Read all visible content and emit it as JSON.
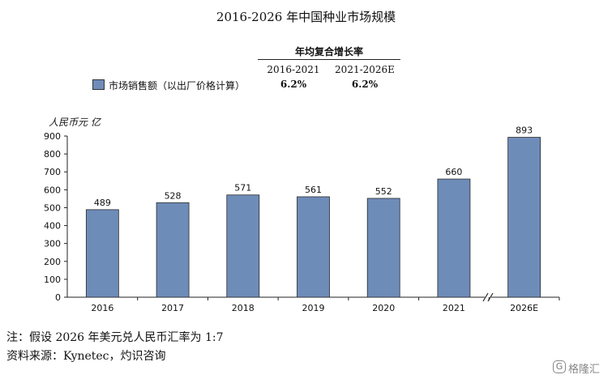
{
  "chart_data": {
    "type": "bar",
    "title": "2016-2026 年中国种业市场规模",
    "ylabel": "人民币元 亿",
    "categories": [
      "2016",
      "2017",
      "2018",
      "2019",
      "2020",
      "2021",
      "2026E"
    ],
    "series": [
      {
        "name": "市场销售额（以出厂价格计算）",
        "values": [
          489,
          528,
          571,
          561,
          552,
          660,
          893
        ]
      }
    ],
    "ylim": [
      0,
      900
    ],
    "yticks": [
      0,
      100,
      200,
      300,
      400,
      500,
      600,
      700,
      800,
      900
    ],
    "axis_break_before": "2026E",
    "grid": false,
    "bar_color": "#6e8cb8",
    "cagr_table": {
      "header": "年均复合增长率",
      "columns": [
        "2016-2021",
        "2021-2026E"
      ],
      "values": [
        "6.2%",
        "6.2%"
      ]
    }
  },
  "footnotes": {
    "note": "注：假设 2026 年美元兑人民币汇率为 1:7",
    "source": "资料来源：Kynetec，灼识咨询"
  },
  "watermark": {
    "icon_letter": "G",
    "text": "格隆汇"
  }
}
